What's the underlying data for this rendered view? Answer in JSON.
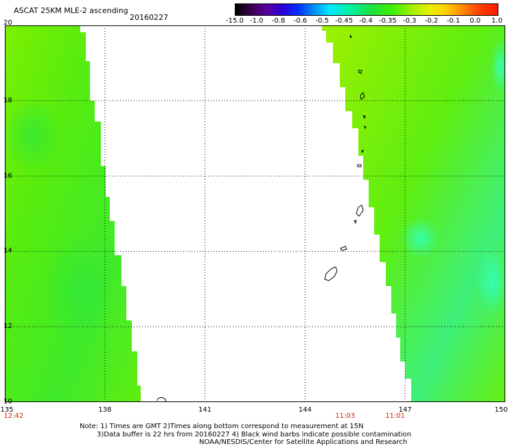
{
  "header": {
    "title": "ASCAT 25KM MLE-2 ascending",
    "date": "20160227"
  },
  "colorbar": {
    "labels": [
      "-15.0",
      "-1.0",
      "-0.8",
      "-0.6",
      "-0.5",
      "-0.45",
      "-0.4",
      "-0.35",
      "-0.3",
      "-0.2",
      "-0.1",
      "0.0",
      "1.0"
    ],
    "colors": [
      "#000000",
      "#5a00a0",
      "#0030ff",
      "#00e8ff",
      "#20e040",
      "#a8f000",
      "#ffd000",
      "#ff1a00"
    ]
  },
  "map": {
    "lon_range": [
      135,
      150
    ],
    "lat_range": [
      10,
      20
    ],
    "lon_ticks": [
      "135",
      "138",
      "141",
      "144",
      "147",
      "150"
    ],
    "lat_ticks": [
      "20",
      "18",
      "16",
      "14",
      "12",
      "10"
    ],
    "grid": "dotted",
    "swath_colors": {
      "main": "#66ee00",
      "light": "#9ef000",
      "cyan": "#33ffbb"
    }
  },
  "times": [
    {
      "text": "12:42",
      "lon": 135.1
    },
    {
      "text": "11:03",
      "lon": 145.2
    },
    {
      "text": "11:01",
      "lon": 146.7
    }
  ],
  "notes": {
    "line1": "Note: 1) Times are GMT 2)Times along bottom correspond to measurement at 15N",
    "line2": "3)Data buffer is 22 hrs from 20160227 4) Black wind barbs indicate possible contamination",
    "line3": "NOAA/NESDIS/Center for Satellite Applications and Research"
  }
}
